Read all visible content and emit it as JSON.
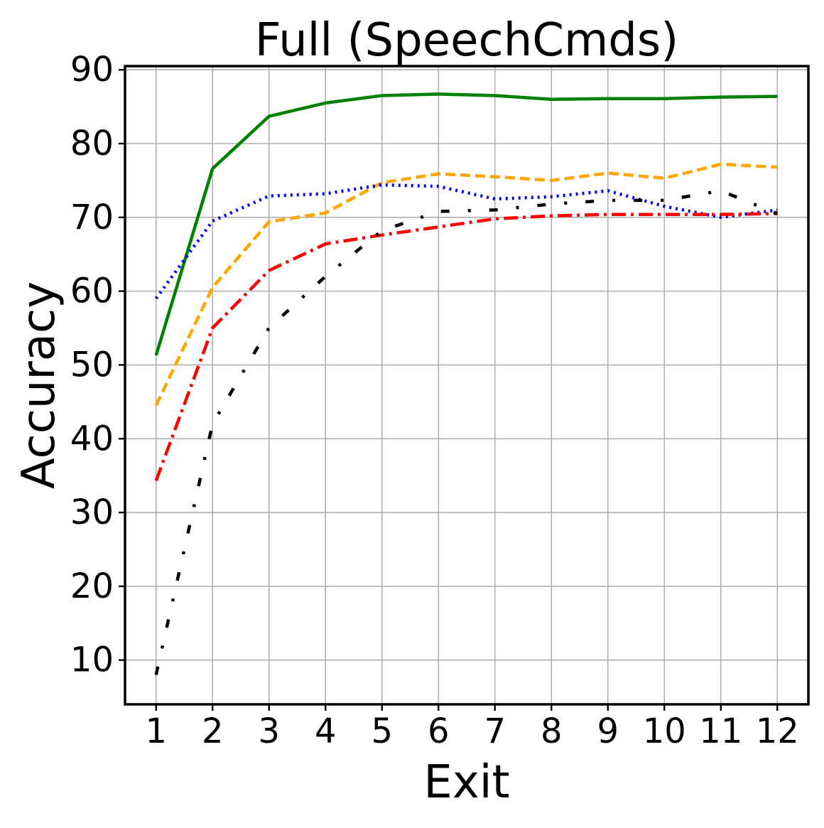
{
  "chart_data": {
    "type": "line",
    "title": "Full (SpeechCmds)",
    "xlabel": "Exit",
    "ylabel": "Accuracy",
    "x": [
      1,
      2,
      3,
      4,
      5,
      6,
      7,
      8,
      9,
      10,
      11,
      12
    ],
    "xlim": [
      0.45,
      12.55
    ],
    "ylim": [
      4,
      90.5
    ],
    "xticks": [
      "1",
      "2",
      "3",
      "4",
      "5",
      "6",
      "7",
      "8",
      "9",
      "10",
      "11",
      "12"
    ],
    "yticks": [
      "10",
      "20",
      "30",
      "40",
      "50",
      "60",
      "70",
      "80",
      "90"
    ],
    "grid": true,
    "series": [
      {
        "color": "#008000",
        "style": "solid",
        "values": [
          51.3,
          76.6,
          83.7,
          85.5,
          86.5,
          86.7,
          86.5,
          86.0,
          86.1,
          86.1,
          86.3,
          86.4
        ]
      },
      {
        "color": "#FFA500",
        "style": "dashed",
        "values": [
          44.5,
          60.5,
          69.4,
          70.6,
          74.7,
          75.9,
          75.5,
          75.0,
          76.0,
          75.3,
          77.2,
          76.8
        ]
      },
      {
        "color": "#0000FF",
        "style": "dotted",
        "values": [
          59.0,
          69.5,
          72.9,
          73.2,
          74.4,
          74.2,
          72.5,
          72.8,
          73.6,
          71.5,
          70.0,
          71.0
        ]
      },
      {
        "color": "#FF0000",
        "style": "dashdot",
        "values": [
          34.3,
          55.0,
          62.8,
          66.4,
          67.6,
          68.7,
          69.8,
          70.2,
          70.4,
          70.4,
          70.4,
          70.5
        ]
      },
      {
        "color": "#000000",
        "style": "loosedashdot",
        "values": [
          8.0,
          42.0,
          55.0,
          62.0,
          68.2,
          70.8,
          71.0,
          71.8,
          72.3,
          72.3,
          73.6,
          70.5
        ]
      }
    ]
  }
}
